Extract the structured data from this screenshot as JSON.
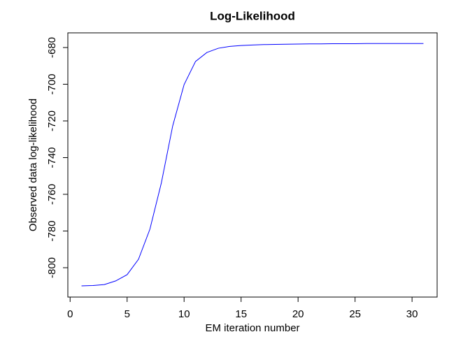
{
  "chart_data": {
    "type": "line",
    "title": "Log-Likelihood",
    "x_label": "EM iteration number",
    "y_label": "Observed data log-likelihood",
    "x": [
      1,
      2,
      3,
      4,
      5,
      6,
      7,
      8,
      9,
      10,
      11,
      12,
      13,
      14,
      15,
      16,
      17,
      18,
      19,
      20,
      21,
      22,
      23,
      24,
      25,
      26,
      27,
      28,
      29,
      30,
      31
    ],
    "series": [
      {
        "name": "log-likelihood",
        "color": "#0000ff",
        "values": [
          -809.9,
          -809.7,
          -809.2,
          -807.2,
          -803.8,
          -795.4,
          -779.0,
          -753.9,
          -722.7,
          -700.2,
          -687.6,
          -682.7,
          -680.4,
          -679.4,
          -678.9,
          -678.6,
          -678.4,
          -678.3,
          -678.2,
          -678.1,
          -678.0,
          -678.0,
          -677.9,
          -677.9,
          -677.9,
          -677.8,
          -677.8,
          -677.8,
          -677.8,
          -677.8,
          -677.8
        ]
      }
    ],
    "xlim": [
      -0.2,
      32.2
    ],
    "ylim": [
      -816,
      -672
    ],
    "xticks": [
      0,
      5,
      10,
      15,
      20,
      25,
      30
    ],
    "yticks": [
      -800,
      -780,
      -760,
      -740,
      -720,
      -700,
      -680
    ]
  }
}
